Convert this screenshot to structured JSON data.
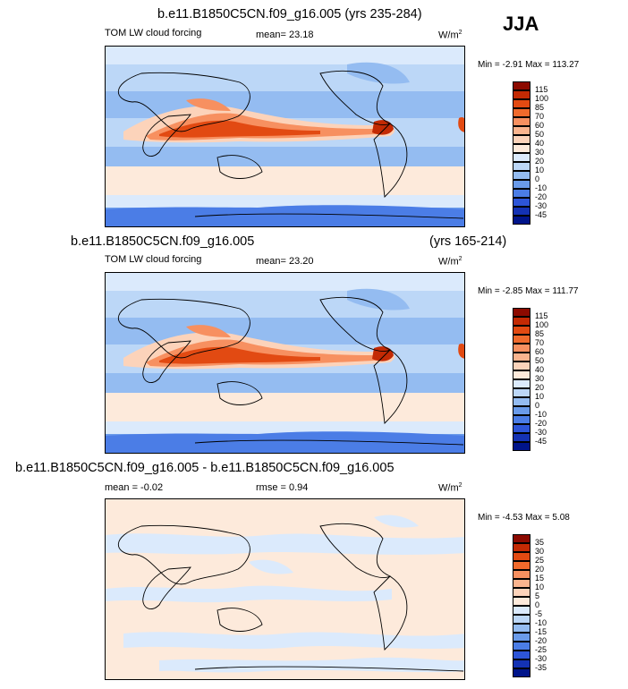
{
  "season_label": "JJA",
  "panels": [
    {
      "title": "b.e11.B1850C5CN.f09_g16.005 (yrs 235-284)",
      "title_right": "",
      "variable": "TOM LW cloud forcing",
      "stat": "mean=  23.18",
      "units_base": "W/m",
      "units_sup": "2",
      "minmax": "Min =  -2.91 Max = 113.27",
      "colorbar_labels": [
        "115",
        "100",
        "85",
        "70",
        "60",
        "50",
        "40",
        "30",
        "20",
        "10",
        "0",
        "-10",
        "-20",
        "-30",
        "-45"
      ],
      "colorbar_colors": [
        "#8c0a00",
        "#c32a04",
        "#e24a12",
        "#f06a2c",
        "#f79060",
        "#fab48e",
        "#fcd3ba",
        "#fdeadb",
        "#dbeafc",
        "#bcd7f7",
        "#94bcf1",
        "#6a9bea",
        "#4b7de6",
        "#2d55d8",
        "#1432b4",
        "#00148a"
      ]
    },
    {
      "title": "b.e11.B1850C5CN.f09_g16.005",
      "title_right": "(yrs 165-214)",
      "variable": "TOM LW cloud forcing",
      "stat": "mean=  23.20",
      "units_base": "W/m",
      "units_sup": "2",
      "minmax": "Min =  -2.85 Max = 111.77",
      "colorbar_labels": [
        "115",
        "100",
        "85",
        "70",
        "60",
        "50",
        "40",
        "30",
        "20",
        "10",
        "0",
        "-10",
        "-20",
        "-30",
        "-45"
      ],
      "colorbar_colors": [
        "#8c0a00",
        "#c32a04",
        "#e24a12",
        "#f06a2c",
        "#f79060",
        "#fab48e",
        "#fcd3ba",
        "#fdeadb",
        "#dbeafc",
        "#bcd7f7",
        "#94bcf1",
        "#6a9bea",
        "#4b7de6",
        "#2d55d8",
        "#1432b4",
        "#00148a"
      ]
    },
    {
      "title": "b.e11.B1850C5CN.f09_g16.005 - b.e11.B1850C5CN.f09_g16.005",
      "title_right": "",
      "variable": "mean =  -0.02",
      "stat": "rmse =   0.94",
      "units_base": "W/m",
      "units_sup": "2",
      "minmax": "Min =  -4.53 Max =   5.08",
      "colorbar_labels": [
        "35",
        "30",
        "25",
        "20",
        "15",
        "10",
        "5",
        "0",
        "-5",
        "-10",
        "-15",
        "-20",
        "-25",
        "-30",
        "-35"
      ],
      "colorbar_colors": [
        "#8c0a00",
        "#c32a04",
        "#e24a12",
        "#f06a2c",
        "#f79060",
        "#fab48e",
        "#fcd3ba",
        "#fdeadb",
        "#dbeafc",
        "#bcd7f7",
        "#94bcf1",
        "#6a9bea",
        "#4b7de6",
        "#2d55d8",
        "#1432b4",
        "#00148a"
      ]
    }
  ],
  "chart_data": [
    {
      "type": "heatmap",
      "title": "b.e11.B1850C5CN.f09_g16.005 (yrs 235-284)",
      "mean": 23.18,
      "min": -2.91,
      "max": 113.27,
      "levels": [
        -45,
        -30,
        -20,
        -10,
        0,
        10,
        20,
        30,
        40,
        50,
        60,
        70,
        85,
        100,
        115
      ]
    },
    {
      "type": "heatmap",
      "title": "b.e11.B1850C5CN.f09_g16.005 (yrs 165-214)",
      "mean": 23.2,
      "min": -2.85,
      "max": 111.77,
      "levels": [
        -45,
        -30,
        -20,
        -10,
        0,
        10,
        20,
        30,
        40,
        50,
        60,
        70,
        85,
        100,
        115
      ]
    },
    {
      "type": "heatmap",
      "title": "b.e11.B1850C5CN.f09_g16.005 - b.e11.B1850C5CN.f09_g16.005",
      "mean": -0.02,
      "rmse": 0.94,
      "min": -4.53,
      "max": 5.08,
      "levels": [
        -35,
        -30,
        -25,
        -20,
        -15,
        -10,
        -5,
        0,
        5,
        10,
        15,
        20,
        25,
        30,
        35
      ]
    }
  ]
}
